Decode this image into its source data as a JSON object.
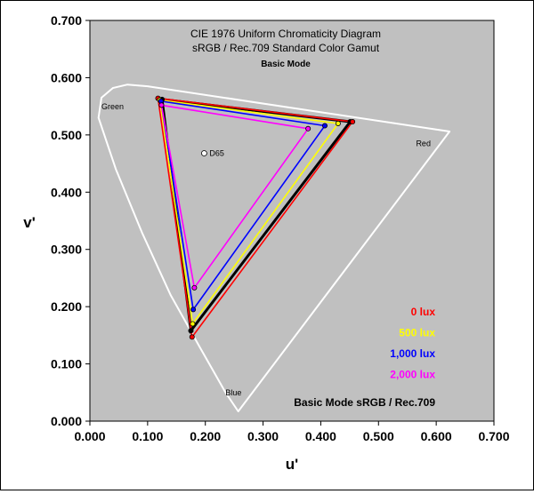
{
  "chart_data": {
    "type": "scatter",
    "title": "CIE 1976 Uniform Chromaticity Diagram",
    "subtitle": "sRGB / Rec.709 Standard Color Gamut",
    "mode_label": "Basic Mode",
    "xlabel": "u'",
    "ylabel": "v'",
    "xlim": [
      0.0,
      0.7
    ],
    "ylim": [
      0.0,
      0.7
    ],
    "x_ticks": [
      "0.000",
      "0.100",
      "0.200",
      "0.300",
      "0.400",
      "0.500",
      "0.600",
      "0.700"
    ],
    "y_ticks": [
      "0.000",
      "0.100",
      "0.200",
      "0.300",
      "0.400",
      "0.500",
      "0.600",
      "0.700"
    ],
    "background_color": "#c0c0c0",
    "locus": [
      [
        0.257,
        0.017
      ],
      [
        0.235,
        0.05
      ],
      [
        0.19,
        0.13
      ],
      [
        0.14,
        0.22
      ],
      [
        0.09,
        0.33
      ],
      [
        0.045,
        0.44
      ],
      [
        0.015,
        0.53
      ],
      [
        0.02,
        0.565
      ],
      [
        0.04,
        0.582
      ],
      [
        0.065,
        0.588
      ],
      [
        0.1,
        0.585
      ],
      [
        0.623,
        0.506
      ]
    ],
    "locus_color": "#ffffff",
    "locus_labels": [
      {
        "text": "Green",
        "x": 0.02,
        "y": 0.545
      },
      {
        "text": "Red",
        "x": 0.565,
        "y": 0.48
      },
      {
        "text": "Blue",
        "x": 0.235,
        "y": 0.045
      }
    ],
    "white_point": {
      "label": "D65",
      "x": 0.198,
      "y": 0.468
    },
    "series": [
      {
        "name": "Basic Mode  sRGB / Rec.709",
        "color": "#000000",
        "points": [
          [
            0.451,
            0.523
          ],
          [
            0.125,
            0.562
          ],
          [
            0.175,
            0.158
          ]
        ]
      },
      {
        "name": "0 lux",
        "color": "#ff0000",
        "points": [
          [
            0.455,
            0.523
          ],
          [
            0.118,
            0.564
          ],
          [
            0.177,
            0.147
          ]
        ]
      },
      {
        "name": "500 lux",
        "color": "#ffff00",
        "points": [
          [
            0.43,
            0.52
          ],
          [
            0.121,
            0.561
          ],
          [
            0.178,
            0.17
          ]
        ]
      },
      {
        "name": "1,000 lux",
        "color": "#0000ff",
        "points": [
          [
            0.407,
            0.516
          ],
          [
            0.123,
            0.559
          ],
          [
            0.179,
            0.195
          ]
        ]
      },
      {
        "name": "2,000 lux",
        "color": "#ff00ff",
        "points": [
          [
            0.378,
            0.511
          ],
          [
            0.124,
            0.552
          ],
          [
            0.181,
            0.233
          ]
        ]
      }
    ],
    "legend_placement": "bottom-right",
    "grid": false
  }
}
